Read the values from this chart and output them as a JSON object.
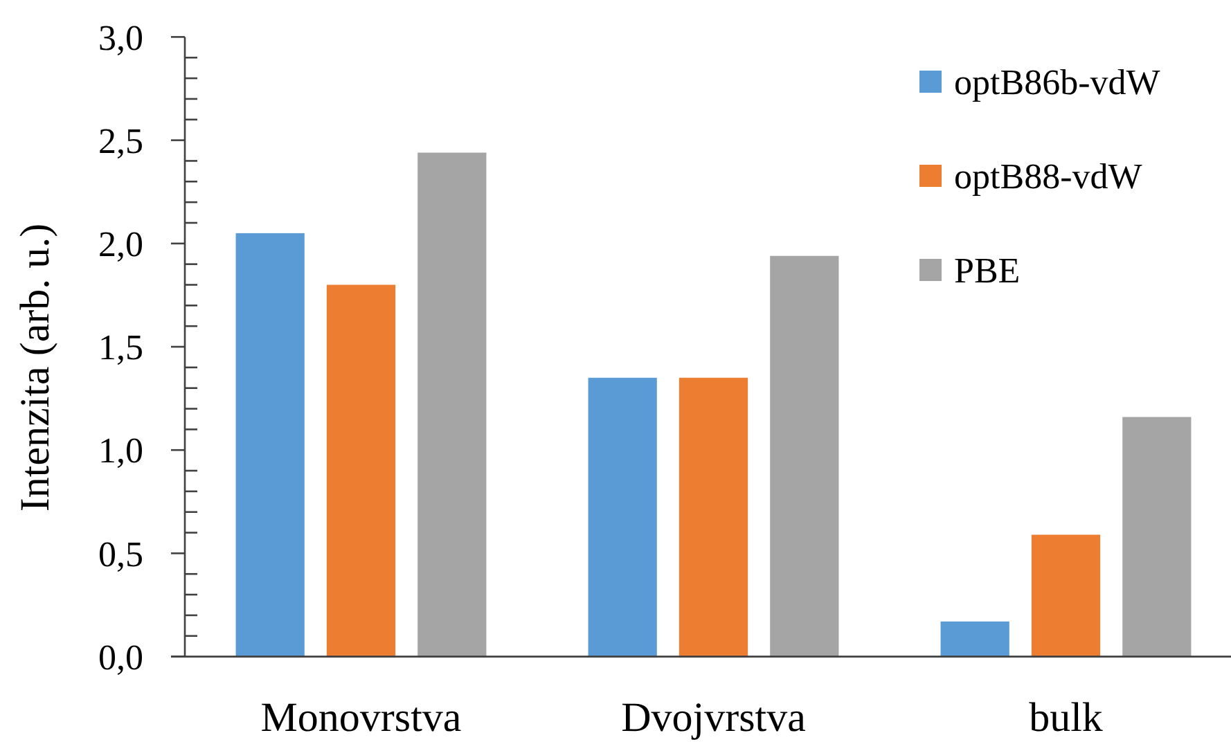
{
  "chart_data": {
    "type": "bar",
    "ylabel": "Intenzita (arb. u.)",
    "categories": [
      "Monovrstva",
      "Dvojvrstva",
      "bulk"
    ],
    "series": [
      {
        "name": "optB86b-vdW",
        "color": "#5b9bd5",
        "values": [
          2.05,
          1.35,
          0.17
        ]
      },
      {
        "name": "optB88-vdW",
        "color": "#ed7d31",
        "values": [
          1.8,
          1.35,
          0.59
        ]
      },
      {
        "name": "PBE",
        "color": "#a5a5a5",
        "values": [
          2.44,
          1.94,
          1.16
        ]
      }
    ],
    "ylim": [
      0,
      3
    ],
    "yticks": [
      {
        "value": 0,
        "label": "0,0"
      },
      {
        "value": 0.1,
        "label": null
      },
      {
        "value": 0.2,
        "label": null
      },
      {
        "value": 0.3,
        "label": null
      },
      {
        "value": 0.4,
        "label": null
      },
      {
        "value": 0.5,
        "label": "0,5"
      },
      {
        "value": 0.6,
        "label": null
      },
      {
        "value": 0.7,
        "label": null
      },
      {
        "value": 0.8,
        "label": null
      },
      {
        "value": 0.9,
        "label": null
      },
      {
        "value": 1,
        "label": "1,0"
      },
      {
        "value": 1.1,
        "label": null
      },
      {
        "value": 1.2,
        "label": null
      },
      {
        "value": 1.3,
        "label": null
      },
      {
        "value": 1.4,
        "label": null
      },
      {
        "value": 1.5,
        "label": "1,5"
      },
      {
        "value": 1.6,
        "label": null
      },
      {
        "value": 1.7,
        "label": null
      },
      {
        "value": 1.8,
        "label": null
      },
      {
        "value": 1.9,
        "label": null
      },
      {
        "value": 2,
        "label": "2,0"
      },
      {
        "value": 2.1,
        "label": null
      },
      {
        "value": 2.2,
        "label": null
      },
      {
        "value": 2.3,
        "label": null
      },
      {
        "value": 2.4,
        "label": null
      },
      {
        "value": 2.5,
        "label": "2,5"
      },
      {
        "value": 2.6,
        "label": null
      },
      {
        "value": 2.7,
        "label": null
      },
      {
        "value": 2.8,
        "label": null
      },
      {
        "value": 2.9,
        "label": null
      },
      {
        "value": 3,
        "label": "3,0"
      }
    ],
    "legend": "top right",
    "grid": false
  }
}
